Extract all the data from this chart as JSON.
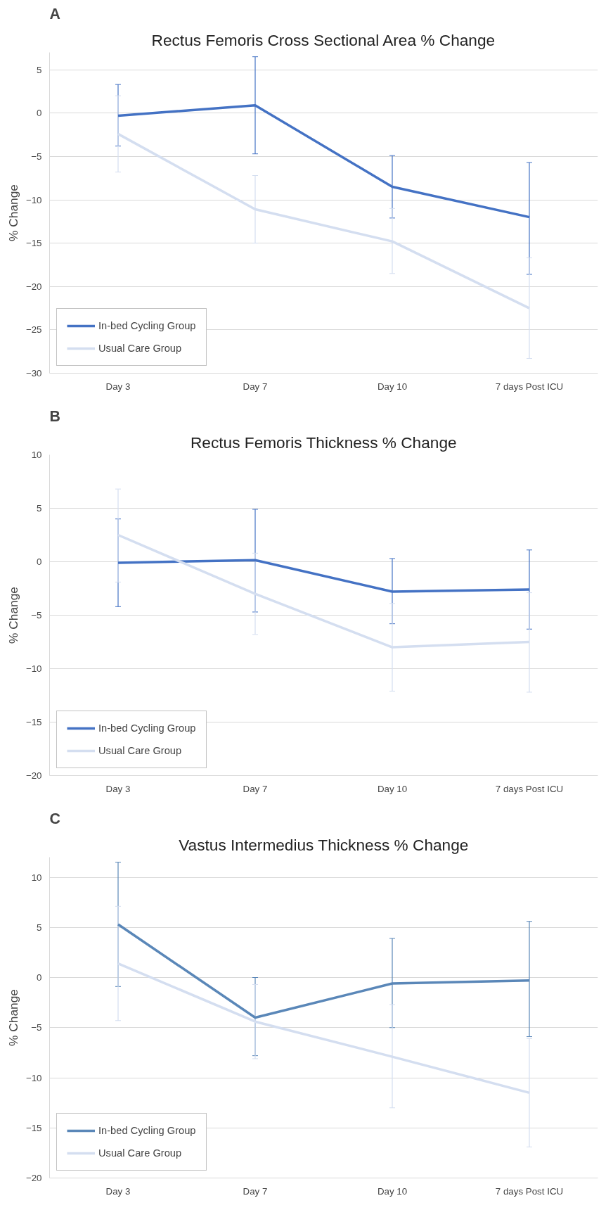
{
  "chart_data": [
    {
      "type": "line",
      "title": "Rectus Femoris Cross Sectional Area % Change",
      "ylabel": "% Change",
      "annotations": [
        "A"
      ],
      "categories": [
        "Day 3",
        "Day 7",
        "Day 10",
        "7 days Post ICU"
      ],
      "ylim": [
        -30,
        7
      ],
      "yticks": [
        -30,
        -25,
        -20,
        -15,
        -10,
        -5,
        0,
        5
      ],
      "grid": "y",
      "legend": "bottom left",
      "marker": "none",
      "line_style": "solid",
      "series": [
        {
          "name": "In-bed Cycling Group",
          "color": "#4472c4",
          "values": [
            -0.3,
            0.9,
            -8.5,
            -12.0
          ],
          "errors": [
            [
              -3.8,
              3.3
            ],
            [
              -4.7,
              6.5
            ],
            [
              -12.1,
              -4.9
            ],
            [
              -18.6,
              -5.7
            ]
          ]
        },
        {
          "name": "Usual Care Group",
          "color": "#d4def0",
          "values": [
            -2.4,
            -11.1,
            -14.8,
            -22.5
          ],
          "errors": [
            [
              -6.8,
              2.0
            ],
            [
              -15.0,
              -7.2
            ],
            [
              -18.5,
              -11.0
            ],
            [
              -28.3,
              -16.7
            ]
          ]
        }
      ]
    },
    {
      "type": "line",
      "title": "Rectus Femoris Thickness % Change",
      "ylabel": "% Change",
      "annotations": [
        "B"
      ],
      "categories": [
        "Day 3",
        "Day 7",
        "Day 10",
        "7 days Post ICU"
      ],
      "ylim": [
        -20,
        10
      ],
      "yticks": [
        -20,
        -15,
        -10,
        -5,
        0,
        5,
        10
      ],
      "grid": "y",
      "legend": "bottom left",
      "marker": "none",
      "line_style": "solid",
      "series": [
        {
          "name": "In-bed Cycling Group",
          "color": "#4472c4",
          "values": [
            -0.1,
            0.15,
            -2.8,
            -2.6
          ],
          "errors": [
            [
              -4.2,
              4.0
            ],
            [
              -4.7,
              4.9
            ],
            [
              -5.8,
              0.3
            ],
            [
              -6.3,
              1.1
            ]
          ]
        },
        {
          "name": "Usual Care Group",
          "color": "#d4def0",
          "values": [
            2.5,
            -3.0,
            -8.0,
            -7.5
          ],
          "errors": [
            [
              -1.9,
              6.8
            ],
            [
              -6.8,
              0.8
            ],
            [
              -12.1,
              -3.9
            ],
            [
              -12.2,
              -2.9
            ]
          ]
        }
      ]
    },
    {
      "type": "line",
      "title": "Vastus Intermedius Thickness % Change",
      "ylabel": "% Change",
      "annotations": [
        "C"
      ],
      "categories": [
        "Day 3",
        "Day 7",
        "Day 10",
        "7 days Post ICU"
      ],
      "ylim": [
        -20,
        12
      ],
      "yticks": [
        -20,
        -15,
        -10,
        -5,
        0,
        5,
        10
      ],
      "grid": "y",
      "legend": "bottom left",
      "marker": "none",
      "line_style": "solid",
      "series": [
        {
          "name": "In-bed Cycling Group",
          "color": "#5a87b8",
          "values": [
            5.3,
            -4.0,
            -0.6,
            -0.3
          ],
          "errors": [
            [
              -0.9,
              11.5
            ],
            [
              -7.8,
              0.0
            ],
            [
              -5.0,
              3.9
            ],
            [
              -5.9,
              5.6
            ]
          ]
        },
        {
          "name": "Usual Care Group",
          "color": "#d4def0",
          "values": [
            1.4,
            -4.4,
            -7.9,
            -11.5
          ],
          "errors": [
            [
              -4.3,
              7.1
            ],
            [
              -8.1,
              -0.7
            ],
            [
              -13.0,
              -2.7
            ],
            [
              -16.9,
              -6.1
            ]
          ]
        }
      ]
    }
  ]
}
